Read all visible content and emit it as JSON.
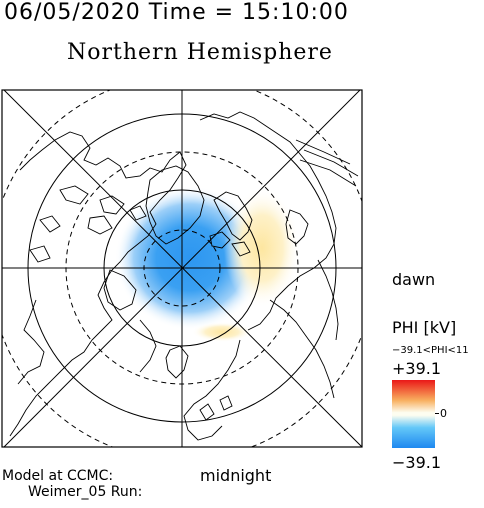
{
  "header": {
    "time": "06/05/2020 Time = 15:10:00",
    "title": "Northern Hemisphere"
  },
  "map": {
    "labels": {
      "dawn": "dawn",
      "midnight": "midnight"
    },
    "colors": {
      "negative_cell": "#2d96f0",
      "positive_cell": "#fde6a0",
      "frame": "#000000"
    }
  },
  "colorbar": {
    "title": "PHI [kV]",
    "range_text": "−39.1<PHI<11",
    "max_label": "+39.1",
    "min_label": "−39.1",
    "zero_label": "0",
    "colors": {
      "max": "#ea1818",
      "zero": "#fdfdf0",
      "min": "#1e88f0"
    }
  },
  "footer": {
    "line1": "Model at CCMC:",
    "line2": "Weimer_05 Run:"
  }
}
